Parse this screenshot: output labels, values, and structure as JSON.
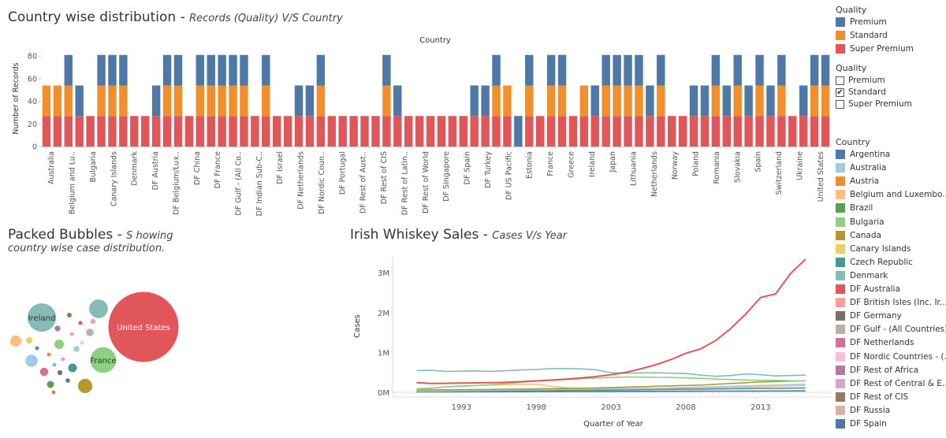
{
  "bar_section": {
    "title": "Country wise distribution",
    "sep": " - ",
    "subtitle": "Records (Quality) V/S  Country"
  },
  "bubble_section": {
    "title": "Packed Bubbles",
    "sep": " - ",
    "subtitle_line1": "S howing",
    "subtitle_line2": "country wise case distribution."
  },
  "line_section": {
    "title": "Irish Whiskey Sales",
    "sep": " - ",
    "subtitle": "Cases V/s Year"
  },
  "legend_quality": {
    "title": "Quality",
    "items": [
      {
        "label": "Premium",
        "color": "#4e79a7"
      },
      {
        "label": "Standard",
        "color": "#f28e2b"
      },
      {
        "label": "Super Premium",
        "color": "#e15759"
      }
    ]
  },
  "filter_quality": {
    "title": "Quality",
    "items": [
      {
        "label": "Premium",
        "checked": ""
      },
      {
        "label": "Standard",
        "checked": "✔"
      },
      {
        "label": "Super Premium",
        "checked": ""
      }
    ]
  },
  "legend_country": {
    "title": "Country",
    "items": [
      {
        "label": "Argentina",
        "color": "#4e79a7"
      },
      {
        "label": "Australia",
        "color": "#a0cbe8"
      },
      {
        "label": "Austria",
        "color": "#f28e2b"
      },
      {
        "label": "Belgium and Luxembo...",
        "color": "#ffbe7d"
      },
      {
        "label": "Brazil",
        "color": "#59a14f"
      },
      {
        "label": "Bulgaria",
        "color": "#8cd17d"
      },
      {
        "label": "Canada",
        "color": "#b6992d"
      },
      {
        "label": "Canary Islands",
        "color": "#f1ce63"
      },
      {
        "label": "Czech Republic",
        "color": "#499894"
      },
      {
        "label": "Denmark",
        "color": "#86bcb6"
      },
      {
        "label": "DF Australia",
        "color": "#e15759"
      },
      {
        "label": "DF British Isles (Inc. Ir...",
        "color": "#ff9d9a"
      },
      {
        "label": "DF Germany",
        "color": "#79706e"
      },
      {
        "label": "DF Gulf - (All Countries)",
        "color": "#bab0ac"
      },
      {
        "label": "DF Netherlands",
        "color": "#d37295"
      },
      {
        "label": "DF Nordic Countries - (...",
        "color": "#fabfd2"
      },
      {
        "label": "DF Rest of Africa",
        "color": "#b07aa1"
      },
      {
        "label": "DF Rest of Central & E...",
        "color": "#d4a6c8"
      },
      {
        "label": "DF Rest of CIS",
        "color": "#9d7660"
      },
      {
        "label": "DF Russia",
        "color": "#d7b5a6"
      },
      {
        "label": "DF Spain",
        "color": "#4e79a7"
      }
    ]
  },
  "chart_data": [
    {
      "type": "bar",
      "stacked": true,
      "title": "Country wise distribution",
      "xlabel": "Country",
      "ylabel": "Number of Records",
      "ylim": [
        0,
        85
      ],
      "yticks": [
        0,
        20,
        40,
        60,
        80
      ],
      "grid": false,
      "stack_order": [
        "Super Premium",
        "Standard",
        "Premium"
      ],
      "colors": {
        "Premium": "#4e79a7",
        "Standard": "#f28e2b",
        "Super Premium": "#e15759"
      },
      "bar_patterns": [
        "SSP",
        "SP",
        "SSP",
        "SP",
        "S",
        "SSP",
        "SSP",
        "SSP",
        "S",
        "S",
        "SP",
        "SSP",
        "SSP",
        "P",
        "SSP",
        "SSP",
        "SSP",
        "SSP",
        "SSP",
        "P",
        "SSP",
        "S",
        "S",
        "SP",
        "SP",
        "SSP",
        "P",
        "P",
        "P",
        "P",
        "P",
        "SSP",
        "SP",
        "S",
        "S",
        "S",
        "S",
        "S",
        "S",
        "SP",
        "SP",
        "SSP",
        "SS",
        "P",
        "SSP",
        "S",
        "SSP",
        "SSP",
        "S",
        "SS",
        "SP",
        "SSP",
        "SSP",
        "SSP",
        "SSP",
        "SP",
        "SSP",
        "S",
        "S",
        "SP",
        "SP",
        "SSP",
        "SP",
        "SSP",
        "SP",
        "SSP",
        "SP",
        "SSP",
        "S",
        "SP",
        "SSP",
        "SSP"
      ],
      "bar_stacks": [
        [
          27,
          27,
          0
        ],
        [
          27,
          27,
          0
        ],
        [
          27,
          27,
          27
        ],
        [
          27,
          0,
          27
        ],
        [
          27,
          0,
          0
        ],
        [
          27,
          27,
          27
        ],
        [
          27,
          27,
          27
        ],
        [
          27,
          27,
          27
        ],
        [
          27,
          0,
          0
        ],
        [
          27,
          0,
          0
        ],
        [
          27,
          0,
          27
        ],
        [
          27,
          27,
          27
        ],
        [
          27,
          27,
          27
        ],
        [
          27,
          0,
          0
        ],
        [
          27,
          27,
          27
        ],
        [
          27,
          27,
          27
        ],
        [
          27,
          27,
          27
        ],
        [
          27,
          27,
          27
        ],
        [
          27,
          27,
          27
        ],
        [
          27,
          0,
          0
        ],
        [
          27,
          27,
          27
        ],
        [
          27,
          0,
          0
        ],
        [
          27,
          0,
          0
        ],
        [
          27,
          0,
          27
        ],
        [
          27,
          0,
          27
        ],
        [
          27,
          27,
          27
        ],
        [
          27,
          0,
          0
        ],
        [
          27,
          0,
          0
        ],
        [
          27,
          0,
          0
        ],
        [
          27,
          0,
          0
        ],
        [
          27,
          0,
          0
        ],
        [
          27,
          27,
          27
        ],
        [
          27,
          0,
          27
        ],
        [
          27,
          0,
          0
        ],
        [
          27,
          0,
          0
        ],
        [
          27,
          0,
          0
        ],
        [
          27,
          0,
          0
        ],
        [
          27,
          0,
          0
        ],
        [
          27,
          0,
          0
        ],
        [
          27,
          0,
          27
        ],
        [
          27,
          0,
          27
        ],
        [
          27,
          27,
          27
        ],
        [
          27,
          27,
          0
        ],
        [
          0,
          0,
          27
        ],
        [
          27,
          27,
          27
        ],
        [
          27,
          0,
          0
        ],
        [
          27,
          27,
          27
        ],
        [
          27,
          27,
          27
        ],
        [
          27,
          0,
          0
        ],
        [
          27,
          27,
          0
        ],
        [
          27,
          0,
          27
        ],
        [
          27,
          27,
          27
        ],
        [
          27,
          27,
          27
        ],
        [
          27,
          27,
          27
        ],
        [
          27,
          27,
          27
        ],
        [
          27,
          0,
          27
        ],
        [
          27,
          27,
          27
        ],
        [
          27,
          0,
          0
        ],
        [
          27,
          0,
          0
        ],
        [
          27,
          0,
          27
        ],
        [
          27,
          0,
          27
        ],
        [
          27,
          27,
          27
        ],
        [
          27,
          0,
          27
        ],
        [
          27,
          27,
          27
        ],
        [
          27,
          0,
          27
        ],
        [
          27,
          27,
          27
        ],
        [
          27,
          0,
          27
        ],
        [
          27,
          27,
          27
        ],
        [
          27,
          0,
          0
        ],
        [
          27,
          0,
          27
        ],
        [
          27,
          27,
          27
        ],
        [
          27,
          27,
          27
        ]
      ],
      "x_tick_labels": [
        "Australia",
        "Belgium and Lu..",
        "Bulgaria",
        "Canary Islands",
        "Denmark",
        "DF Austria",
        "DF Belgium/Lux..",
        "DF China",
        "DF France",
        "DF Gulf - (All Co..",
        "DF Indian Sub-C..",
        "DF Israel",
        "DF Netherlands",
        "DF Nordic Coun..",
        "DF Portugal",
        "DF Rest of Aust..",
        "DF Rest of CIS",
        "DF Rest of Latin..",
        "DF Rest of World",
        "DF Singapore",
        "DF Spain",
        "DF Turkey",
        "DF US Pacific",
        "Estonia",
        "France",
        "Greece",
        "Ireland",
        "Japan",
        "Lithuania",
        "Netherlands",
        "Norway",
        "Poland",
        "Romania",
        "Slovakia",
        "Spain",
        "Switzerland",
        "Ukraine",
        "United States"
      ]
    },
    {
      "type": "bubble",
      "title": "Packed Bubbles",
      "bubbles": [
        {
          "label": "United States",
          "value": 3300000,
          "color": "#e15759"
        },
        {
          "label": "Ireland",
          "value": 560000,
          "color": "#86bcb6"
        },
        {
          "label": "France",
          "value": 460000,
          "color": "#8cd17d"
        },
        {
          "label": "",
          "value": 250000,
          "color": "#86bcb6"
        },
        {
          "label": "",
          "value": 150000,
          "color": "#b6992d"
        },
        {
          "label": "",
          "value": 110000,
          "color": "#a0cbe8"
        },
        {
          "label": "",
          "value": 95000,
          "color": "#ffbe7d"
        },
        {
          "label": "",
          "value": 70000,
          "color": "#8cd17d"
        },
        {
          "label": "",
          "value": 60000,
          "color": "#499894"
        },
        {
          "label": "",
          "value": 55000,
          "color": "#d37295"
        },
        {
          "label": "",
          "value": 45000,
          "color": "#bab0ac"
        },
        {
          "label": "",
          "value": 40000,
          "color": "#59a14f"
        },
        {
          "label": "",
          "value": 35000,
          "color": "#f1ce63"
        },
        {
          "label": "",
          "value": 30000,
          "color": "#a0cbe8"
        },
        {
          "label": "",
          "value": 28000,
          "color": "#b07aa1"
        },
        {
          "label": "",
          "value": 25000,
          "color": "#d7b5a6"
        },
        {
          "label": "",
          "value": 22000,
          "color": "#79706e"
        },
        {
          "label": "",
          "value": 20000,
          "color": "#9d7660"
        },
        {
          "label": "",
          "value": 18000,
          "color": "#4e79a7"
        },
        {
          "label": "",
          "value": 15000,
          "color": "#e15759"
        },
        {
          "label": "",
          "value": 12000,
          "color": "#fabfd2"
        },
        {
          "label": "",
          "value": 10000,
          "color": "#f28e2b"
        },
        {
          "label": "",
          "value": 9000,
          "color": "#d4a6c8"
        },
        {
          "label": "",
          "value": 8000,
          "color": "#499894"
        },
        {
          "label": "",
          "value": 7000,
          "color": "#ff9d9a"
        },
        {
          "label": "",
          "value": 6000,
          "color": "#86bcb6"
        },
        {
          "label": "",
          "value": 5000,
          "color": "#b6992d"
        }
      ]
    },
    {
      "type": "line",
      "title": "Irish Whiskey Sales",
      "xlabel": "Quarter of Year",
      "ylabel": "Cases",
      "xlim": [
        1988.4,
        2017.8
      ],
      "ylim": [
        -120000,
        3400000
      ],
      "xticks": [
        1993,
        1998,
        2003,
        2008,
        2013
      ],
      "yticks": [
        0,
        1000000,
        2000000,
        3000000
      ],
      "ytick_labels": [
        "0M",
        "1M",
        "2M",
        "3M"
      ],
      "x": [
        1990,
        1991,
        1992,
        1993,
        1994,
        1995,
        1996,
        1997,
        1998,
        1999,
        2000,
        2001,
        2002,
        2003,
        2004,
        2005,
        2006,
        2007,
        2008,
        2009,
        2010,
        2011,
        2012,
        2013,
        2014,
        2015,
        2016
      ],
      "series": [
        {
          "name": "United States",
          "color": "#e15759",
          "values": [
            240000,
            220000,
            225000,
            230000,
            235000,
            240000,
            250000,
            265000,
            285000,
            305000,
            330000,
            360000,
            395000,
            440000,
            500000,
            590000,
            690000,
            820000,
            980000,
            1090000,
            1300000,
            1600000,
            1960000,
            2380000,
            2470000,
            2980000,
            3340000
          ]
        },
        {
          "name": "Ireland",
          "color": "#86bcb6",
          "values": [
            540000,
            550000,
            520000,
            530000,
            535000,
            525000,
            540000,
            560000,
            570000,
            590000,
            595000,
            585000,
            565000,
            490000,
            480000,
            485000,
            490000,
            480000,
            470000,
            430000,
            400000,
            420000,
            460000,
            440000,
            410000,
            420000,
            430000
          ]
        },
        {
          "name": "France",
          "color": "#8cd17d",
          "values": [
            80000,
            100000,
            140000,
            150000,
            170000,
            190000,
            220000,
            250000,
            280000,
            300000,
            320000,
            340000,
            355000,
            370000,
            385000,
            380000,
            375000,
            370000,
            360000,
            350000,
            330000,
            320000,
            310000,
            300000,
            300000,
            290000,
            290000
          ]
        },
        {
          "name": "Canada",
          "color": "#b6992d",
          "values": [
            60000,
            60000,
            62000,
            64000,
            66000,
            70000,
            75000,
            80000,
            85000,
            90000,
            95000,
            100000,
            110000,
            120000,
            130000,
            140000,
            150000,
            160000,
            170000,
            180000,
            200000,
            220000,
            240000,
            260000,
            270000,
            280000,
            290000
          ]
        },
        {
          "name": "Australia",
          "color": "#a0cbe8",
          "values": [
            30000,
            32000,
            34000,
            38000,
            42000,
            48000,
            55000,
            60000,
            65000,
            70000,
            75000,
            78000,
            82000,
            86000,
            90000,
            95000,
            100000,
            110000,
            120000,
            130000,
            140000,
            150000,
            160000,
            170000,
            180000,
            190000,
            200000
          ]
        },
        {
          "name": "Denmark",
          "color": "#499894",
          "values": [
            20000,
            22000,
            24000,
            26000,
            28000,
            30000,
            32000,
            34000,
            36000,
            40000,
            44000,
            48000,
            52000,
            56000,
            60000,
            64000,
            68000,
            72000,
            76000,
            80000,
            84000,
            88000,
            92000,
            96000,
            100000,
            104000,
            108000
          ]
        },
        {
          "name": "Belgium and Luxembo...",
          "color": "#ffbe7d",
          "values": [
            90000,
            110000,
            140000,
            160000,
            170000,
            180000,
            190000,
            200000,
            205000,
            150000,
            110000,
            100000,
            95000,
            90000,
            92000,
            94000,
            96000,
            98000,
            100000,
            105000,
            110000,
            120000,
            130000,
            140000,
            150000,
            160000,
            170000
          ]
        },
        {
          "name": "Argentina",
          "color": "#4e79a7",
          "values": [
            10000,
            10000,
            11000,
            12000,
            12000,
            13000,
            14000,
            15000,
            16000,
            17000,
            18000,
            19000,
            20000,
            21000,
            22000,
            23000,
            24000,
            25000,
            26000,
            27000,
            28000,
            29000,
            30000,
            31000,
            32000,
            33000,
            34000
          ]
        }
      ]
    }
  ]
}
